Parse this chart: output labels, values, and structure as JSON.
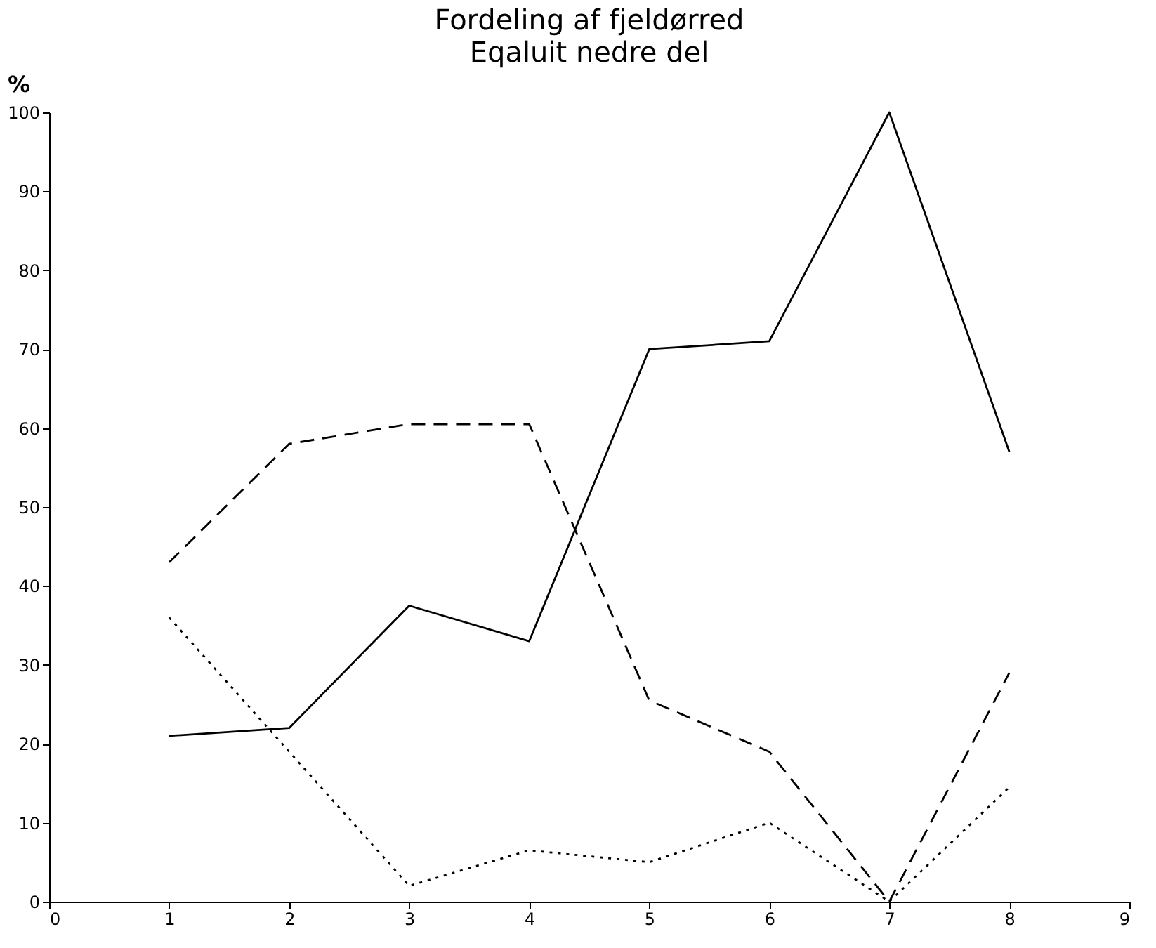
{
  "chart_data": {
    "type": "line",
    "title": "Fordeling af fjeldørred",
    "subtitle": "Eqaluit nedre del",
    "ylabel": "%",
    "x": [
      1,
      2,
      3,
      4,
      5,
      6,
      7,
      8
    ],
    "series": [
      {
        "color": "#000000",
        "line_style": "solid",
        "values": [
          21,
          22,
          37.5,
          33,
          70,
          71,
          100,
          57
        ]
      },
      {
        "color": "#000000",
        "line_style": "dashed",
        "values": [
          43,
          58,
          60.5,
          60.5,
          25.5,
          19,
          0,
          29
        ]
      },
      {
        "color": "#000000",
        "line_style": "dotted",
        "values": [
          36,
          19,
          2,
          6.5,
          5,
          10,
          0,
          14.5
        ]
      }
    ],
    "xlim": [
      0,
      9
    ],
    "xticks": [
      0,
      1,
      2,
      3,
      4,
      5,
      6,
      7,
      8,
      9
    ],
    "ylim": [
      0,
      100
    ],
    "yticks": [
      0,
      10,
      20,
      30,
      40,
      50,
      60,
      70,
      80,
      90,
      100
    ],
    "grid": false,
    "marker": "none"
  }
}
